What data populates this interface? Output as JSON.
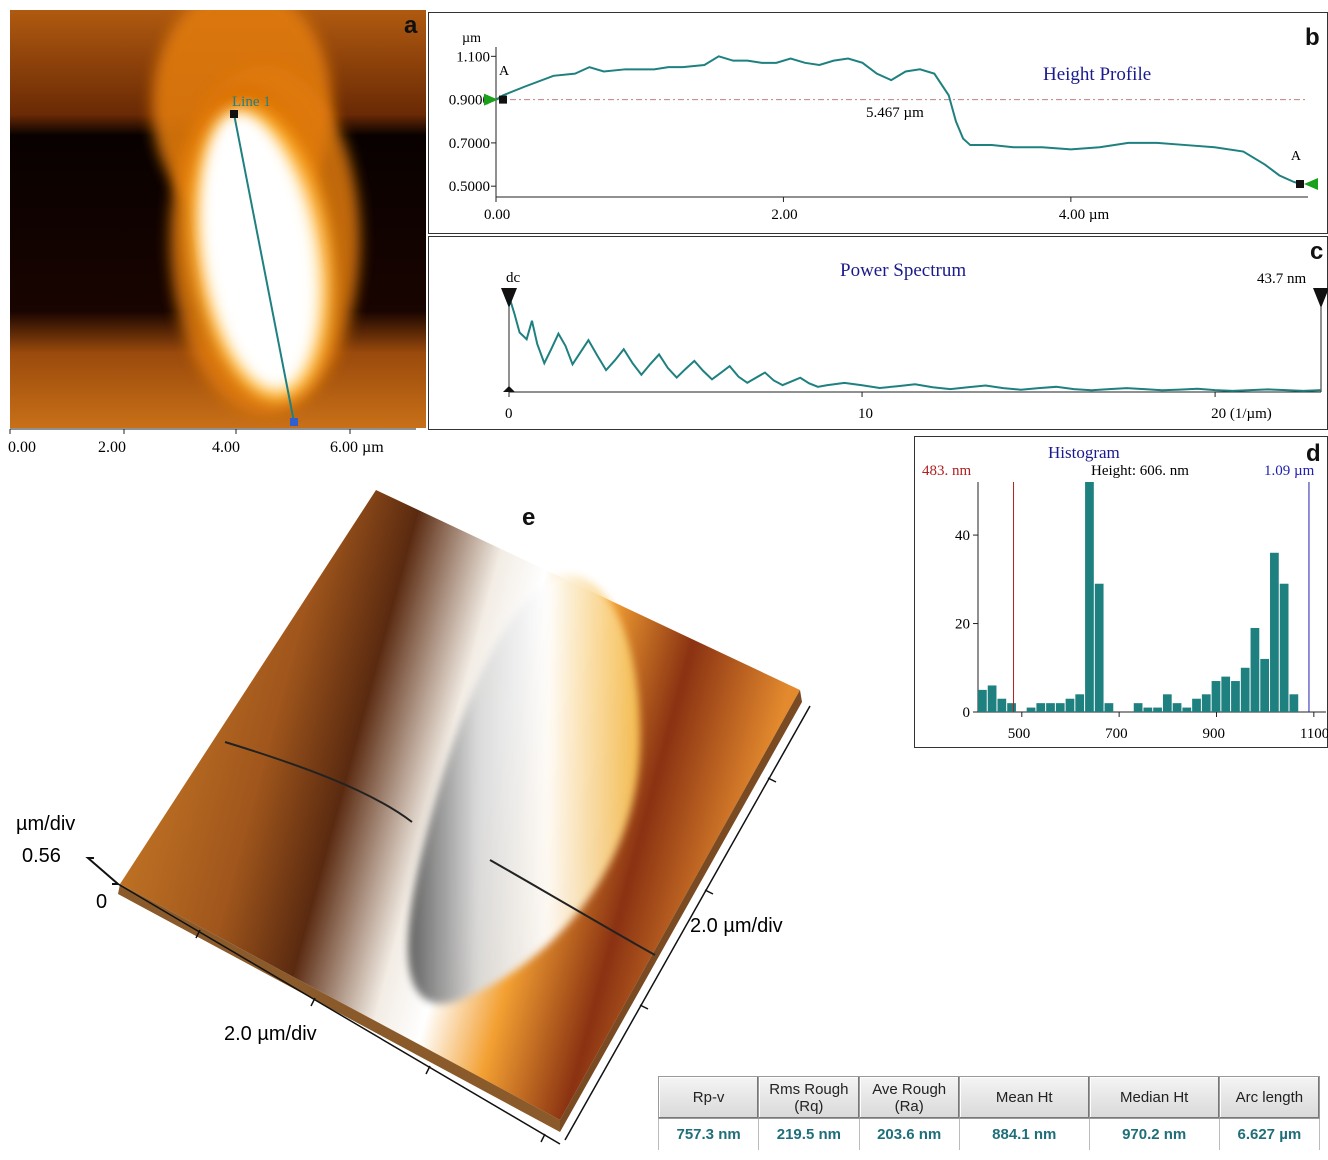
{
  "colors": {
    "trace": "#1f8080",
    "axis": "#222222",
    "title_blue": "#1a1a8c",
    "cursor_red": "#b02020",
    "cursor_blue": "#2020b0",
    "marker_green": "#1aa01a",
    "table_value": "#1f6f7a"
  },
  "panel_labels": {
    "a": "a",
    "b": "b",
    "c": "c",
    "d": "d",
    "e": "e"
  },
  "panel_a": {
    "line_label": "Line 1",
    "x_ticks": [
      "0.00",
      "2.00",
      "4.00",
      "6.00 µm"
    ],
    "line_endpoints_um": {
      "start": [
        4.1,
        6.6
      ],
      "end": [
        5.1,
        0.1
      ]
    },
    "scan_size_um": 7.5,
    "marker_colors": [
      "black-marker-icon",
      "blue-marker-icon"
    ]
  },
  "chart_data": [
    {
      "id": "height-profile",
      "type": "line",
      "title": "Height Profile",
      "ylabel": "µm",
      "x_ticks": [
        "0.00",
        "2.00",
        "4.00 µm"
      ],
      "y_ticks": [
        "1.100",
        "0.9000",
        "0.7000",
        "0.5000"
      ],
      "xlim": [
        0,
        5.65
      ],
      "ylim": [
        0.45,
        1.12
      ],
      "cursor_label": "A",
      "distance_label": "5.467 µm",
      "reference_y": 0.9,
      "x": [
        0.0,
        0.05,
        0.2,
        0.4,
        0.55,
        0.65,
        0.75,
        0.9,
        1.0,
        1.1,
        1.2,
        1.3,
        1.45,
        1.55,
        1.65,
        1.75,
        1.85,
        1.95,
        2.05,
        2.15,
        2.25,
        2.35,
        2.45,
        2.55,
        2.65,
        2.75,
        2.85,
        2.95,
        3.05,
        3.15,
        3.2,
        3.25,
        3.3,
        3.35,
        3.45,
        3.6,
        3.8,
        4.0,
        4.2,
        4.4,
        4.6,
        4.8,
        5.0,
        5.2,
        5.35,
        5.45,
        5.55,
        5.6
      ],
      "y": [
        0.9,
        0.92,
        0.96,
        1.01,
        1.02,
        1.05,
        1.03,
        1.04,
        1.04,
        1.04,
        1.05,
        1.05,
        1.06,
        1.1,
        1.08,
        1.08,
        1.07,
        1.07,
        1.09,
        1.07,
        1.06,
        1.08,
        1.09,
        1.07,
        1.02,
        0.99,
        1.03,
        1.04,
        1.02,
        0.92,
        0.8,
        0.72,
        0.69,
        0.69,
        0.69,
        0.68,
        0.68,
        0.67,
        0.68,
        0.7,
        0.7,
        0.69,
        0.68,
        0.66,
        0.6,
        0.55,
        0.52,
        0.51
      ]
    },
    {
      "id": "power-spectrum",
      "type": "line",
      "title": "Power Spectrum",
      "x_ticks": [
        "0",
        "10",
        "20 (1/µm)"
      ],
      "xlim": [
        0,
        23
      ],
      "left_label": "dc",
      "right_label": "43.7 nm",
      "x": [
        0.0,
        0.15,
        0.3,
        0.5,
        0.8,
        1.2,
        1.6,
        2.0,
        2.5,
        3.0,
        3.5,
        4.0,
        4.5,
        5.0,
        5.5,
        6.0,
        6.5,
        7.0,
        7.5,
        8.0,
        8.5,
        9.0,
        10.0,
        11.0,
        12.0,
        13.0,
        14.0,
        15.0,
        16.0,
        17.0,
        18.0,
        19.0,
        20.0,
        21.0,
        22.0,
        23.0
      ],
      "y": [
        1.0,
        0.82,
        0.62,
        0.55,
        0.5,
        0.45,
        0.48,
        0.4,
        0.38,
        0.33,
        0.3,
        0.29,
        0.25,
        0.24,
        0.22,
        0.2,
        0.16,
        0.15,
        0.12,
        0.11,
        0.09,
        0.07,
        0.07,
        0.06,
        0.05,
        0.05,
        0.04,
        0.04,
        0.03,
        0.03,
        0.03,
        0.025,
        0.02,
        0.02,
        0.02,
        0.02
      ]
    },
    {
      "id": "histogram",
      "type": "bar",
      "title": "Histogram",
      "annotation": "Height: 606. nm",
      "left_cursor_label": "483. nm",
      "right_cursor_label": "1.09 µm",
      "left_cursor_x": 483,
      "right_cursor_x": 1090,
      "x_ticks": [
        "500",
        "700",
        "900",
        "1100 nm"
      ],
      "y_ticks": [
        "40",
        "20",
        "0"
      ],
      "xlim": [
        410,
        1125
      ],
      "ylim": [
        0,
        52
      ],
      "bin_width": 20,
      "x": [
        410,
        430,
        450,
        470,
        490,
        510,
        530,
        550,
        570,
        590,
        610,
        630,
        650,
        670,
        690,
        710,
        730,
        750,
        770,
        790,
        810,
        830,
        850,
        870,
        890,
        910,
        930,
        950,
        970,
        990,
        1010,
        1030,
        1050,
        1070,
        1090,
        1110
      ],
      "values": [
        5,
        6,
        3,
        2,
        0,
        1,
        2,
        2,
        2,
        3,
        4,
        52,
        29,
        2,
        0,
        0,
        2,
        1,
        1,
        4,
        2,
        1,
        3,
        4,
        7,
        8,
        7,
        10,
        19,
        12,
        36,
        29,
        4,
        0,
        0,
        0
      ]
    }
  ],
  "panel_e": {
    "z_unit": "µm/div",
    "z_max": "0.56",
    "z_min": "0",
    "x_scale": "2.0 µm/div",
    "y_scale": "2.0 µm/div"
  },
  "stats_table": {
    "headers": [
      "Rp-v",
      "Rms Rough (Rq)",
      "Ave Rough (Ra)",
      "Mean Ht",
      "Median Ht",
      "Arc length"
    ],
    "values": [
      "757.3 nm",
      "219.5 nm",
      "203.6 nm",
      "884.1 nm",
      "970.2 nm",
      "6.627 µm"
    ]
  }
}
